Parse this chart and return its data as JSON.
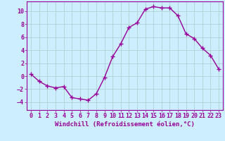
{
  "x": [
    0,
    1,
    2,
    3,
    4,
    5,
    6,
    7,
    8,
    9,
    10,
    11,
    12,
    13,
    14,
    15,
    16,
    17,
    18,
    19,
    20,
    21,
    22,
    23
  ],
  "y": [
    0.3,
    -0.8,
    -1.5,
    -1.8,
    -1.6,
    -3.3,
    -3.5,
    -3.7,
    -2.7,
    -0.2,
    3.0,
    5.0,
    7.5,
    8.2,
    10.3,
    10.7,
    10.5,
    10.5,
    9.3,
    6.5,
    5.8,
    4.3,
    3.2,
    1.1
  ],
  "line_color": "#990099",
  "marker": "+",
  "markersize": 4,
  "linewidth": 1.0,
  "xlabel": "Windchill (Refroidissement éolien,°C)",
  "xlabel_fontsize": 6.5,
  "xlim": [
    -0.5,
    23.5
  ],
  "ylim": [
    -5.2,
    11.5
  ],
  "yticks": [
    -4,
    -2,
    0,
    2,
    4,
    6,
    8,
    10
  ],
  "xticks": [
    0,
    1,
    2,
    3,
    4,
    5,
    6,
    7,
    8,
    9,
    10,
    11,
    12,
    13,
    14,
    15,
    16,
    17,
    18,
    19,
    20,
    21,
    22,
    23
  ],
  "background_color": "#cceeff",
  "grid_color": "#aacccc",
  "tick_color": "#990099",
  "tick_fontsize": 6,
  "tick_label_color": "#990099",
  "spine_color": "#990099"
}
